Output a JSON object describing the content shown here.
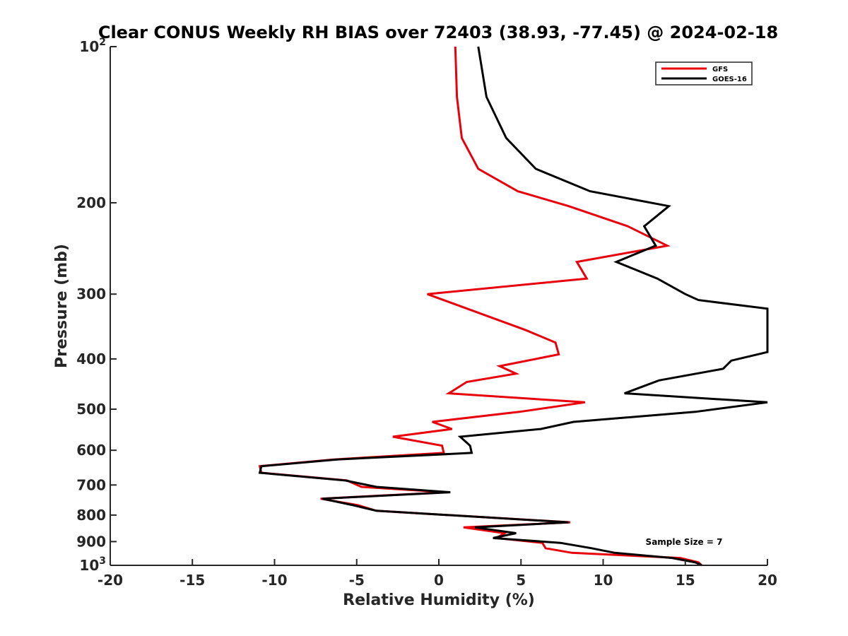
{
  "chart_data": {
    "type": "line",
    "title": "Clear CONUS Weekly RH BIAS over 72403 (38.93, -77.45) @ 2024-02-18",
    "xlabel": "Relative Humidity (%)",
    "ylabel": "Pressure (mb)",
    "xlim": [
      -20,
      20
    ],
    "ylim": [
      100,
      1000
    ],
    "y_scale": "log",
    "y_reversed": true,
    "x_ticks": [
      -20,
      -15,
      -10,
      -5,
      0,
      5,
      10,
      15,
      20
    ],
    "x_tick_labels": [
      "-20",
      "-15",
      "-10",
      "-5",
      "0",
      "5",
      "10",
      "15",
      "20"
    ],
    "y_ticks": [
      {
        "value": 100,
        "label": "10",
        "sup": "2"
      },
      {
        "value": 200,
        "label": "200",
        "sup": ""
      },
      {
        "value": 300,
        "label": "300",
        "sup": ""
      },
      {
        "value": 400,
        "label": "400",
        "sup": ""
      },
      {
        "value": 500,
        "label": "500",
        "sup": ""
      },
      {
        "value": 600,
        "label": "600",
        "sup": ""
      },
      {
        "value": 700,
        "label": "700",
        "sup": ""
      },
      {
        "value": 800,
        "label": "800",
        "sup": ""
      },
      {
        "value": 900,
        "label": "900",
        "sup": ""
      },
      {
        "value": 1000,
        "label": "10",
        "sup": "3"
      }
    ],
    "grid": false,
    "legend_position": "top-right",
    "annotation": "Sample Size = 7",
    "series": [
      {
        "name": "GFS",
        "color": "#e8000b",
        "points": [
          [
            1.0,
            100
          ],
          [
            1.1,
            125
          ],
          [
            1.4,
            150
          ],
          [
            2.4,
            172
          ],
          [
            4.8,
            190
          ],
          [
            7.9,
            203
          ],
          [
            11.5,
            222
          ],
          [
            13.9,
            242
          ],
          [
            8.4,
            260
          ],
          [
            9.0,
            280
          ],
          [
            -0.7,
            300
          ],
          [
            5.3,
            352
          ],
          [
            7.1,
            372
          ],
          [
            7.3,
            392
          ],
          [
            3.7,
            413
          ],
          [
            4.7,
            427
          ],
          [
            1.7,
            443
          ],
          [
            0.6,
            466
          ],
          [
            8.9,
            485
          ],
          [
            4.9,
            506
          ],
          [
            -0.4,
            529
          ],
          [
            0.8,
            546
          ],
          [
            -2.8,
            565
          ],
          [
            0.2,
            588
          ],
          [
            0.3,
            607
          ],
          [
            -6.4,
            625
          ],
          [
            -10.9,
            644
          ],
          [
            -10.8,
            663
          ],
          [
            -5.6,
            686
          ],
          [
            -4.7,
            706
          ],
          [
            0.5,
            723
          ],
          [
            -7.2,
            744
          ],
          [
            -4.9,
            766
          ],
          [
            -3.8,
            785
          ],
          [
            8.0,
            826
          ],
          [
            1.5,
            845
          ],
          [
            4.0,
            867
          ],
          [
            3.5,
            886
          ],
          [
            6.3,
            905
          ],
          [
            6.5,
            927
          ],
          [
            8.1,
            946
          ],
          [
            14.7,
            968
          ],
          [
            15.8,
            987
          ],
          [
            16.0,
            1000
          ]
        ]
      },
      {
        "name": "GOES-16",
        "color": "#000000",
        "points": [
          [
            2.4,
            100
          ],
          [
            2.9,
            125
          ],
          [
            4.1,
            150
          ],
          [
            5.9,
            172
          ],
          [
            9.2,
            190
          ],
          [
            14.0,
            203
          ],
          [
            12.5,
            222
          ],
          [
            13.2,
            242
          ],
          [
            10.8,
            260
          ],
          [
            13.3,
            280
          ],
          [
            15.0,
            300
          ],
          [
            15.8,
            308
          ],
          [
            20.0,
            320
          ],
          [
            20.0,
            388
          ],
          [
            17.8,
            403
          ],
          [
            17.3,
            418
          ],
          [
            13.4,
            440
          ],
          [
            11.3,
            466
          ],
          [
            20.0,
            485
          ],
          [
            15.6,
            506
          ],
          [
            8.2,
            529
          ],
          [
            6.2,
            546
          ],
          [
            1.3,
            565
          ],
          [
            1.9,
            588
          ],
          [
            2.0,
            607
          ],
          [
            -6.2,
            625
          ],
          [
            -10.8,
            644
          ],
          [
            -10.9,
            663
          ],
          [
            -5.7,
            686
          ],
          [
            -3.8,
            706
          ],
          [
            0.7,
            723
          ],
          [
            -7.1,
            744
          ],
          [
            -5.2,
            766
          ],
          [
            -3.8,
            785
          ],
          [
            7.9,
            826
          ],
          [
            2.2,
            845
          ],
          [
            4.7,
            867
          ],
          [
            3.3,
            886
          ],
          [
            7.4,
            905
          ],
          [
            9.3,
            927
          ],
          [
            10.7,
            946
          ],
          [
            14.2,
            968
          ],
          [
            15.6,
            987
          ],
          [
            16.0,
            1000
          ]
        ]
      }
    ]
  }
}
